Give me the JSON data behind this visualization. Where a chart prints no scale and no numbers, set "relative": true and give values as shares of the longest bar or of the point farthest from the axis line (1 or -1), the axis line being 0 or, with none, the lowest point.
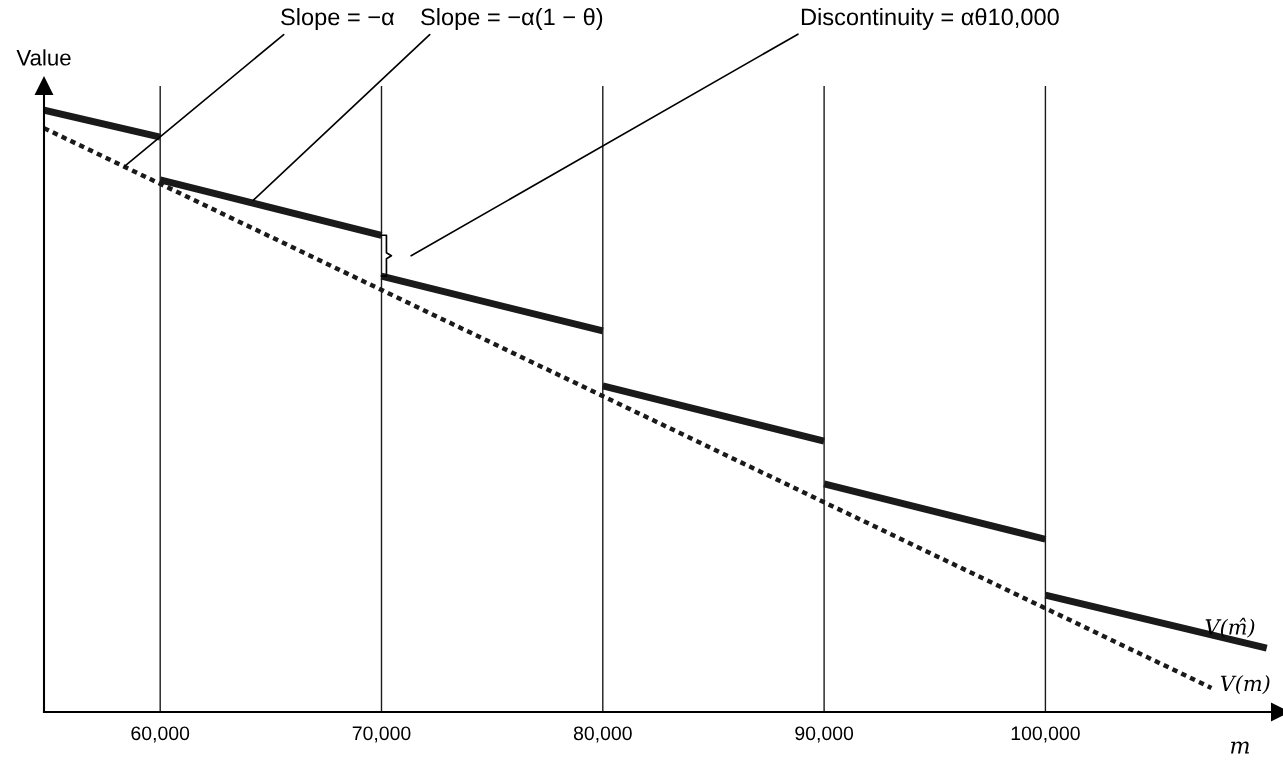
{
  "chart_data": {
    "type": "line",
    "relative": true,
    "xlabel": "m",
    "ylabel": "Value",
    "tick_labels": "x",
    "grid": false,
    "legend": false,
    "marker": "none",
    "xlim": [
      54750,
      110600
    ],
    "xticks": [
      {
        "value": 60000,
        "label": "60,000"
      },
      {
        "value": 70000,
        "label": "70,000"
      },
      {
        "value": 80000,
        "label": "80,000"
      },
      {
        "value": 90000,
        "label": "90,000"
      },
      {
        "value": 100000,
        "label": "100,000"
      }
    ],
    "series": [
      {
        "color": "#1a1a1a",
        "line_style": "solid",
        "x": [
          54750,
          60000
        ],
        "values": [
          1.0,
          0.955
        ]
      },
      {
        "color": "#1a1a1a",
        "line_style": "solid",
        "x": [
          60000,
          70000
        ],
        "values": [
          0.884,
          0.792
        ]
      },
      {
        "color": "#1a1a1a",
        "line_style": "solid",
        "x": [
          70000,
          80000
        ],
        "values": [
          0.724,
          0.633
        ]
      },
      {
        "color": "#1a1a1a",
        "line_style": "solid",
        "x": [
          80000,
          90000
        ],
        "values": [
          0.542,
          0.45
        ]
      },
      {
        "color": "#1a1a1a",
        "line_style": "solid",
        "x": [
          90000,
          100000
        ],
        "values": [
          0.379,
          0.287
        ]
      },
      {
        "name": "V(m̂)",
        "color": "#1a1a1a",
        "line_style": "solid",
        "x": [
          100000,
          110000
        ],
        "values": [
          0.194,
          0.106
        ]
      },
      {
        "name": "V(m)",
        "color": "#1a1a1a",
        "line_style": "dotted",
        "x": [
          54750,
          107500
        ],
        "values": [
          0.97,
          0.04
        ]
      }
    ],
    "ref_lines": [
      {
        "axis": "x",
        "value": 60000,
        "color": "#1a1a1a"
      },
      {
        "axis": "x",
        "value": 70000,
        "color": "#1a1a1a"
      },
      {
        "axis": "x",
        "value": 80000,
        "color": "#1a1a1a"
      },
      {
        "axis": "x",
        "value": 90000,
        "color": "#1a1a1a"
      },
      {
        "axis": "x",
        "value": 100000,
        "color": "#1a1a1a"
      }
    ],
    "annotations": [
      {
        "text": "Slope = −α",
        "x": 58400,
        "y": 0.907
      },
      {
        "text": "Slope = −α(1 − θ)",
        "x": 64200,
        "y": 0.85
      },
      "Discontinuity = αθ10,000"
    ]
  }
}
